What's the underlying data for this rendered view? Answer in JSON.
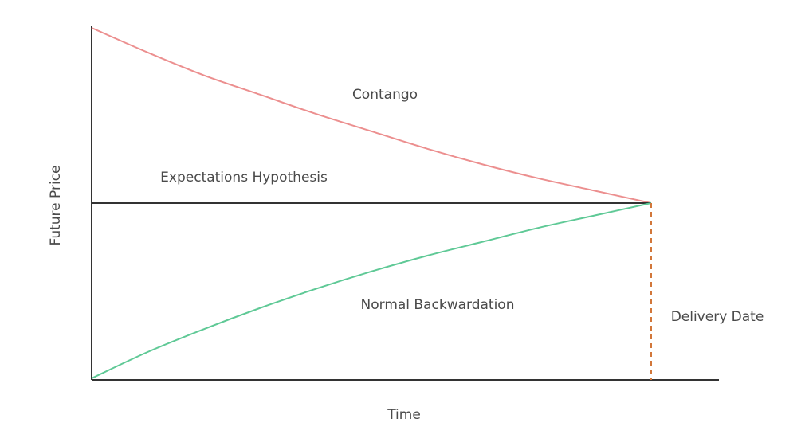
{
  "chart_data": {
    "type": "line",
    "xlabel": "Time",
    "ylabel": "Future Price",
    "xlim": [
      0,
      1
    ],
    "ylim": [
      0,
      1
    ],
    "grid": false,
    "series": [
      {
        "name": "Contango",
        "color": "#ec8f8f",
        "x": [
          0,
          0.1,
          0.2,
          0.3,
          0.4,
          0.5,
          0.6,
          0.7,
          0.8,
          0.9,
          1.0
        ],
        "y": [
          1.0,
          0.93,
          0.865,
          0.81,
          0.755,
          0.705,
          0.655,
          0.61,
          0.57,
          0.535,
          0.5
        ]
      },
      {
        "name": "Expectations Hypothesis",
        "color": "#333333",
        "x": [
          0,
          1.0
        ],
        "y": [
          0.5,
          0.5
        ]
      },
      {
        "name": "Normal Backwardation",
        "color": "#5fc996",
        "x": [
          0,
          0.1,
          0.2,
          0.3,
          0.4,
          0.5,
          0.6,
          0.7,
          0.8,
          0.9,
          1.0
        ],
        "y": [
          0.0,
          0.075,
          0.14,
          0.2,
          0.255,
          0.305,
          0.35,
          0.39,
          0.43,
          0.465,
          0.5
        ]
      }
    ],
    "annotations": [
      {
        "text": "Delivery Date",
        "color": "#d2773a",
        "x": 1.0
      }
    ]
  }
}
